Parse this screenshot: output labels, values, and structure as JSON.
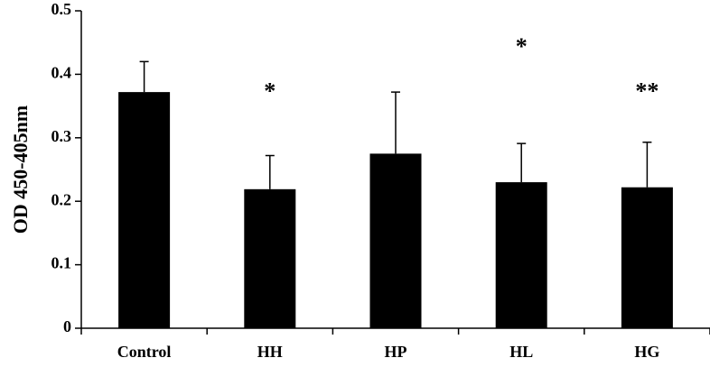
{
  "chart_data": {
    "type": "bar",
    "categories": [
      "Control",
      "HH",
      "HP",
      "HL",
      "HG"
    ],
    "values": [
      0.372,
      0.219,
      0.275,
      0.23,
      0.222
    ],
    "error_upper": [
      0.42,
      0.272,
      0.372,
      0.291,
      0.293
    ],
    "annotations": [
      "",
      "*",
      "",
      "*",
      "**"
    ],
    "ylabel": "OD 450-405nm",
    "xlabel": "",
    "title": "",
    "ylim": [
      0,
      0.5
    ],
    "yticks": [
      "0",
      "0.1",
      "0.2",
      "0.3",
      "0.4",
      "0.5"
    ],
    "bar_color": "#000000",
    "grid": false
  }
}
